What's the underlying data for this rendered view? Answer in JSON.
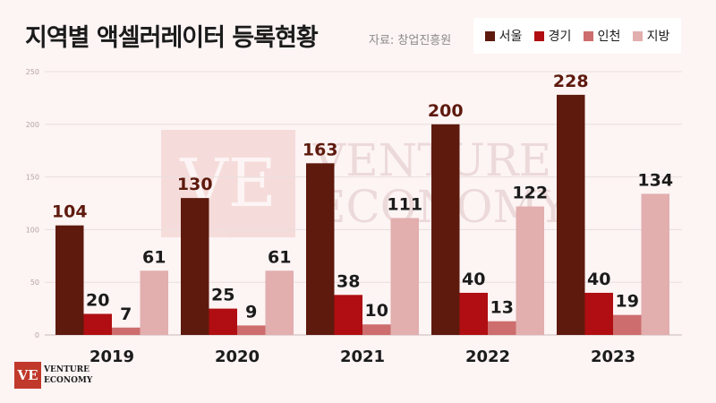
{
  "chart_data": {
    "type": "bar",
    "title": "지역별 액셀러레이터 등록현황",
    "source": "자료: 창업진흥원",
    "categories": [
      "2019",
      "2020",
      "2021",
      "2022",
      "2023"
    ],
    "series": [
      {
        "name": "서울",
        "color": "#5e1a0d",
        "values": [
          104,
          130,
          163,
          200,
          228
        ]
      },
      {
        "name": "경기",
        "color": "#b00e12",
        "values": [
          20,
          25,
          38,
          40,
          40
        ]
      },
      {
        "name": "인천",
        "color": "#cd6d6d",
        "values": [
          7,
          9,
          10,
          13,
          19
        ]
      },
      {
        "name": "지방",
        "color": "#e2aeae",
        "values": [
          61,
          61,
          111,
          122,
          134
        ]
      }
    ],
    "yticks": [
      "0",
      "50",
      "100",
      "150",
      "200",
      "250"
    ],
    "ylim": [
      0,
      250
    ],
    "grid": true,
    "legend": "top-right"
  },
  "watermark": {
    "mark": "VE",
    "line1": "VENTURE",
    "line2": "ECONOMY"
  },
  "logo": {
    "mark": "VE",
    "line1": "VENTURE",
    "line2": "ECONOMY"
  }
}
